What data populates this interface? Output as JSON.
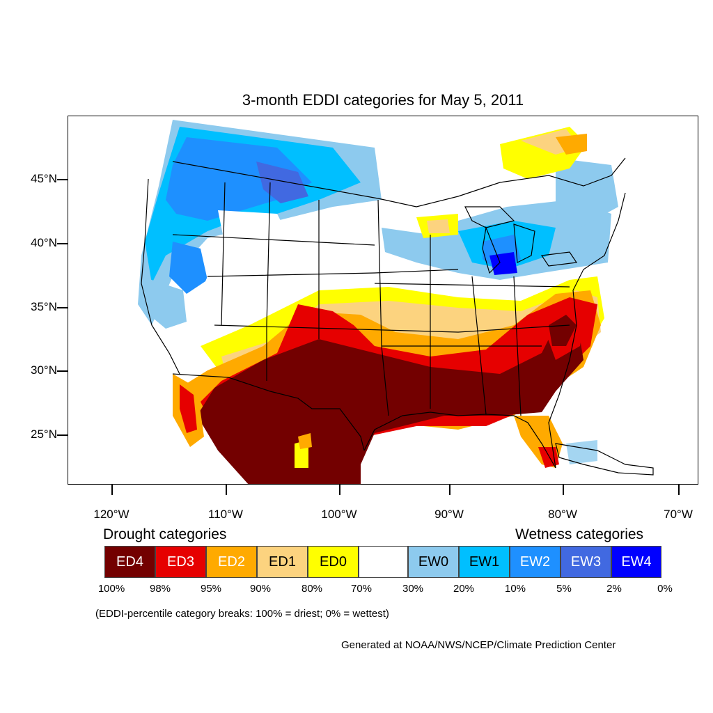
{
  "title": "3-month EDDI categories for May 5, 2011",
  "lat_labels": [
    "45°N",
    "40°N",
    "35°N",
    "30°N",
    "25°N"
  ],
  "lon_labels": [
    "120°W",
    "110°W",
    "100°W",
    "90°W",
    "80°W",
    "70°W"
  ],
  "legend": {
    "drought_heading": "Drought categories",
    "wetness_heading": "Wetness categories",
    "categories": [
      {
        "label": "ED4",
        "color": "#730000"
      },
      {
        "label": "ED3",
        "color": "#E60000"
      },
      {
        "label": "ED2",
        "color": "#FFAA00"
      },
      {
        "label": "ED1",
        "color": "#FCD37F"
      },
      {
        "label": "ED0",
        "color": "#FFFF00"
      },
      {
        "label": "",
        "color": "#FFFFFF"
      },
      {
        "label": "EW0",
        "color": "#8DCAEE"
      },
      {
        "label": "EW1",
        "color": "#00BFFF"
      },
      {
        "label": "EW2",
        "color": "#1E90FF"
      },
      {
        "label": "EW3",
        "color": "#4169E1"
      },
      {
        "label": "EW4",
        "color": "#0000FF"
      }
    ],
    "percentiles": [
      "100%",
      "98%",
      "95%",
      "90%",
      "80%",
      "70%",
      "30%",
      "20%",
      "10%",
      "5%",
      "2%",
      "0%"
    ]
  },
  "note": "(EDDI-percentile category breaks: 100% = driest; 0% = wettest)",
  "credit": "Generated at NOAA/NWS/NCEP/Climate Prediction Center"
}
